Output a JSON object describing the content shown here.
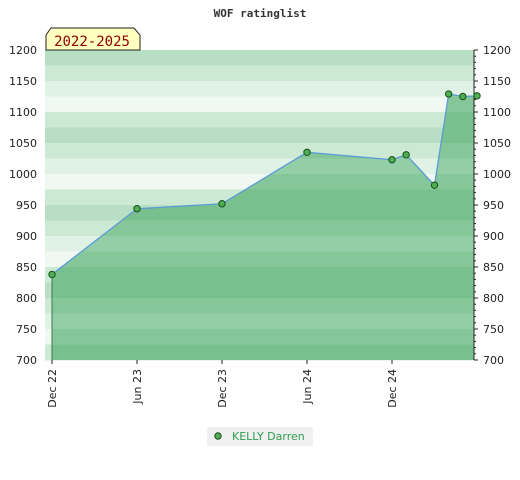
{
  "chart_data": {
    "type": "area",
    "title": "WOF ratinglist",
    "badge": "2022-2025",
    "ylim": [
      700,
      1200
    ],
    "y_ticks": [
      700,
      750,
      800,
      850,
      900,
      950,
      1000,
      1050,
      1100,
      1150,
      1200
    ],
    "x_ticks": [
      {
        "label": "Dec 22",
        "x": "2022-12"
      },
      {
        "label": "Jun 23",
        "x": "2023-06"
      },
      {
        "label": "Dec 23",
        "x": "2023-12"
      },
      {
        "label": "Jun 24",
        "x": "2024-06"
      },
      {
        "label": "Dec 24",
        "x": "2024-12"
      }
    ],
    "series": [
      {
        "name": "KELLY Darren",
        "points": [
          {
            "x": "2022-12",
            "y": 838
          },
          {
            "x": "2023-06",
            "y": 944
          },
          {
            "x": "2023-12",
            "y": 952
          },
          {
            "x": "2024-06",
            "y": 1035
          },
          {
            "x": "2024-12",
            "y": 1023
          },
          {
            "x": "2025-01",
            "y": 1031
          },
          {
            "x": "2025-03",
            "y": 982
          },
          {
            "x": "2025-04",
            "y": 1129
          },
          {
            "x": "2025-05",
            "y": 1125
          },
          {
            "x": "2025-06",
            "y": 1126
          }
        ]
      }
    ],
    "colors": {
      "line": "#5b9bd5",
      "marker_fill": "#4caf50",
      "marker_stroke": "#1e4d1e",
      "fill_below": "#7dc494",
      "legend_text": "#2e9e4f",
      "badge_bg": "#ffffc0"
    }
  }
}
